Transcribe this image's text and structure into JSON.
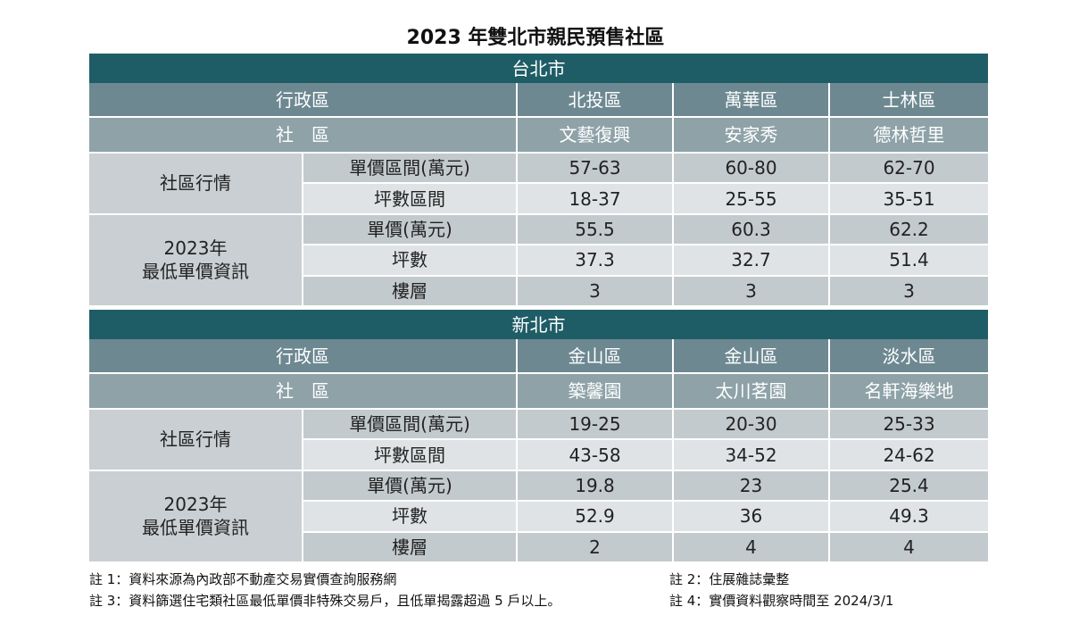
{
  "title": "2023 年雙北市親民預售社區",
  "sections": [
    {
      "name": "台北市",
      "district_label": "行政區",
      "districts": [
        "北投區",
        "萬華區",
        "士林區"
      ],
      "community_label": "社　區",
      "communities": [
        "文藝復興",
        "安家秀",
        "德林哲里"
      ],
      "groups": [
        {
          "label": "社區行情",
          "rows": [
            {
              "label": "單價區間(萬元)",
              "values": [
                "57-63",
                "60-80",
                "62-70"
              ]
            },
            {
              "label": "坪數區間",
              "values": [
                "18-37",
                "25-55",
                "35-51"
              ]
            }
          ]
        },
        {
          "label": "2023年\n最低單價資訊",
          "rows": [
            {
              "label": "單價(萬元)",
              "values": [
                "55.5",
                "60.3",
                "62.2"
              ]
            },
            {
              "label": "坪數",
              "values": [
                "37.3",
                "32.7",
                "51.4"
              ]
            },
            {
              "label": "樓層",
              "values": [
                "3",
                "3",
                "3"
              ]
            }
          ]
        }
      ]
    },
    {
      "name": "新北市",
      "district_label": "行政區",
      "districts": [
        "金山區",
        "金山區",
        "淡水區"
      ],
      "community_label": "社　區",
      "communities": [
        "築馨園",
        "太川茗園",
        "名軒海樂地"
      ],
      "groups": [
        {
          "label": "社區行情",
          "rows": [
            {
              "label": "單價區間(萬元)",
              "values": [
                "19-25",
                "20-30",
                "25-33"
              ]
            },
            {
              "label": "坪數區間",
              "values": [
                "43-58",
                "34-52",
                "24-62"
              ]
            }
          ]
        },
        {
          "label": "2023年\n最低單價資訊",
          "rows": [
            {
              "label": "單價(萬元)",
              "values": [
                "19.8",
                "23",
                "25.4"
              ]
            },
            {
              "label": "坪數",
              "values": [
                "52.9",
                "36",
                "49.3"
              ]
            },
            {
              "label": "樓層",
              "values": [
                "2",
                "4",
                "4"
              ]
            }
          ]
        }
      ]
    }
  ],
  "notes": [
    "註 1：資料來源為內政部不動產交易實價查詢服務網",
    "註 2：住展雜誌彙整",
    "註 3：資料篩選住宅類社區最低單價非特殊交易戶，且低單揭露超過 5 戶以上。",
    "註 4：實價資料觀察時間至 2024/3/1"
  ]
}
